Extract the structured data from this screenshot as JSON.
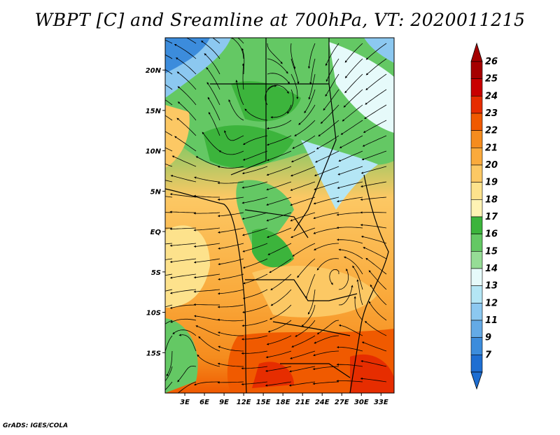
{
  "title": "WBPT [C] and Sreamline at 700hPa, VT: 2020011215",
  "credit": "GrADS: IGES/COLA",
  "map": {
    "lon_range": [
      0,
      35
    ],
    "lat_range": [
      -20,
      24
    ],
    "lon_ticks": [
      "3E",
      "6E",
      "9E",
      "12E",
      "15E",
      "18E",
      "21E",
      "24E",
      "27E",
      "30E",
      "33E"
    ],
    "lat_ticks": [
      "20N",
      "15N",
      "10N",
      "5N",
      "EQ",
      "5S",
      "10S",
      "15S"
    ]
  },
  "colorbar": {
    "levels": [
      "26",
      "25",
      "24",
      "23",
      "22",
      "21",
      "20",
      "19",
      "18",
      "17",
      "16",
      "15",
      "14",
      "13",
      "12",
      "11",
      "9",
      "7"
    ],
    "colors": [
      "#a50000",
      "#c80000",
      "#e62d00",
      "#f05a00",
      "#f58c1e",
      "#faaa3c",
      "#fcc864",
      "#fde28c",
      "#fff3b4",
      "#3cb43c",
      "#64c864",
      "#96dc96",
      "#e6fafa",
      "#b4e6f5",
      "#8cc8f0",
      "#64aae6",
      "#3c8cdc",
      "#1e6ed2"
    ]
  },
  "icons": {
    "colorbar_top": "triangle-up",
    "colorbar_bottom": "triangle-down"
  }
}
